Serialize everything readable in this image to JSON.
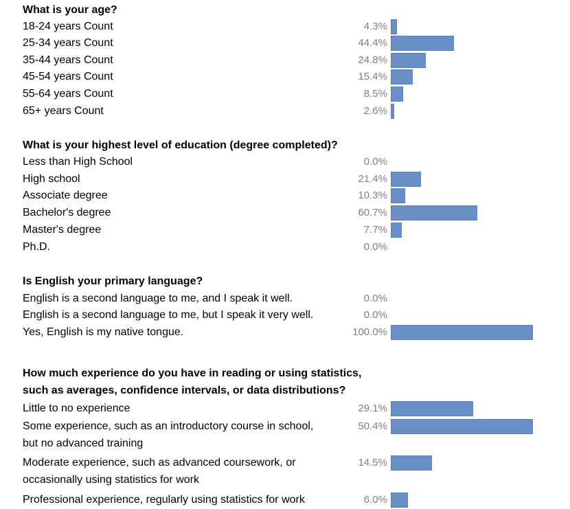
{
  "bar_color": "#6a8fc8",
  "chart_data": [
    {
      "type": "bar",
      "title": "What is your age?",
      "categories": [
        "18-24 years Count",
        "25-34 years Count",
        "35-44 years Count",
        "45-54 years Count",
        "55-64 years Count",
        "65+ years Count"
      ],
      "values": [
        4.3,
        44.4,
        24.8,
        15.4,
        8.5,
        2.6
      ],
      "value_labels": [
        "4.3%",
        "44.4%",
        "24.8%",
        "15.4%",
        "8.5%",
        "2.6%"
      ],
      "unit": "%",
      "xlim": [
        0,
        100
      ]
    },
    {
      "type": "bar",
      "title": "What is your highest level of education (degree completed)?",
      "categories": [
        "Less than High School",
        "High school",
        "Associate degree",
        "Bachelor's degree",
        "Master's degree",
        "Ph.D."
      ],
      "values": [
        0.0,
        21.4,
        10.3,
        60.7,
        7.7,
        0.0
      ],
      "value_labels": [
        "0.0%",
        "21.4%",
        "10.3%",
        "60.7%",
        "7.7%",
        "0.0%"
      ],
      "unit": "%",
      "xlim": [
        0,
        100
      ]
    },
    {
      "type": "bar",
      "title": "Is English your primary language?",
      "categories": [
        "English is a second language to me, and I speak it well.",
        "English is a second language to me, but I speak it very well.",
        "Yes, English is my native tongue."
      ],
      "values": [
        0.0,
        0.0,
        100.0
      ],
      "value_labels": [
        "0.0%",
        "0.0%",
        "100.0%"
      ],
      "unit": "%",
      "xlim": [
        0,
        100
      ]
    },
    {
      "type": "bar",
      "title": [
        "How much experience do you have in reading or using statistics,",
        "such as averages, confidence intervals, or data distributions?"
      ],
      "categories": [
        [
          "Little to no experience"
        ],
        [
          "Some experience, such as an introductory course in school,",
          "but no advanced training"
        ],
        [
          "Moderate experience, such as advanced coursework, or",
          "occasionally using statistics for work"
        ],
        [
          "Professional experience, regularly using statistics for work"
        ]
      ],
      "values": [
        29.1,
        50.4,
        14.5,
        6.0
      ],
      "value_labels": [
        "29.1%",
        "50.4%",
        "14.5%",
        "6.0%"
      ],
      "unit": "%",
      "xlim": [
        0,
        50.4
      ]
    }
  ]
}
